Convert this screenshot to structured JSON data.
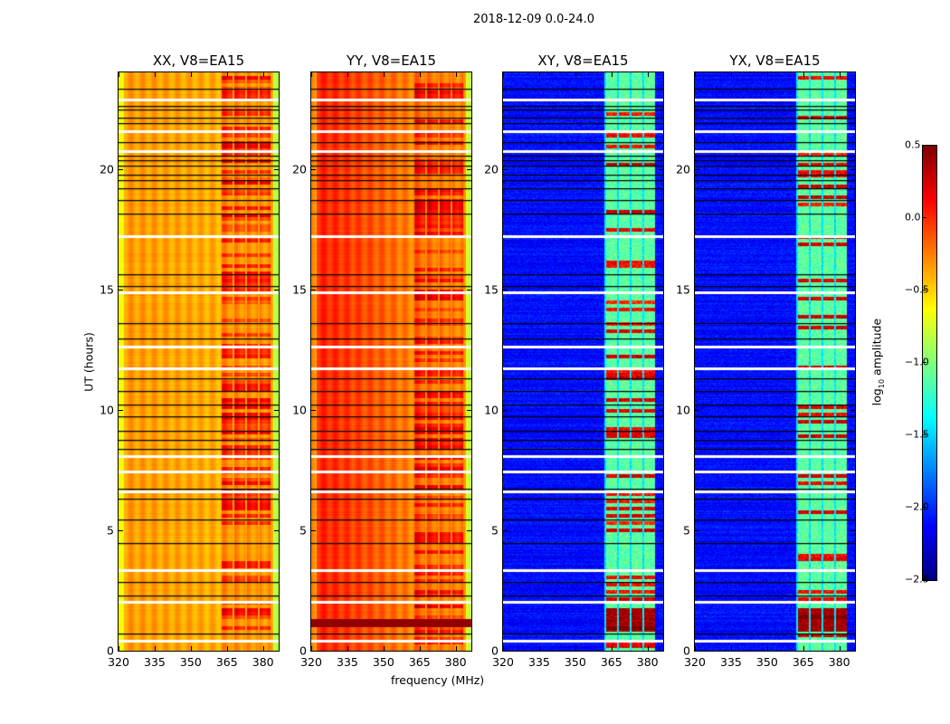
{
  "suptitle": "2018-12-09 0.0-24.0",
  "xlabel": "frequency (MHz)",
  "ylabel": "UT (hours)",
  "colorbar": {
    "label_main": "log",
    "label_sub": "10",
    "label_rest": " amplitude",
    "range": [
      -2.5,
      0.5
    ],
    "ticks": [
      "0.5",
      "0.0",
      "−0.5",
      "−1.0",
      "−1.5",
      "−2.0",
      "−2.5"
    ],
    "tick_values": [
      0.5,
      0.0,
      -0.5,
      -1.0,
      -1.5,
      -2.0,
      -2.5
    ],
    "colormap": "jet"
  },
  "chart_data": [
    {
      "type": "heatmap",
      "title": "XX, V8=EA15",
      "pol": "parallel",
      "xlim": [
        320,
        386.5
      ],
      "ylim": [
        0,
        24
      ],
      "base_level": -0.35,
      "rfi_level": 0.25
    },
    {
      "type": "heatmap",
      "title": "YY, V8=EA15",
      "pol": "parallel",
      "xlim": [
        320,
        386.5
      ],
      "ylim": [
        0,
        24
      ],
      "base_level": -0.15,
      "rfi_level": 0.4
    },
    {
      "type": "heatmap",
      "title": "XY, V8=EA15",
      "pol": "cross",
      "xlim": [
        320,
        386.5
      ],
      "ylim": [
        0,
        24
      ],
      "base_level": -2.3,
      "rfi_level": -1.0
    },
    {
      "type": "heatmap",
      "title": "YX, V8=EA15",
      "pol": "cross",
      "xlim": [
        320,
        386.5
      ],
      "ylim": [
        0,
        24
      ],
      "base_level": -2.3,
      "rfi_level": -1.0
    }
  ],
  "xticks": [
    "320",
    "335",
    "350",
    "365",
    "380"
  ],
  "xtick_values": [
    320,
    335,
    350,
    365,
    380
  ],
  "yticks": [
    "0",
    "5",
    "10",
    "15",
    "20"
  ],
  "ytick_values": [
    0,
    5,
    10,
    15,
    20
  ],
  "rfi_band_mhz": [
    362,
    383
  ],
  "flagged_gaps_hours": [
    22.87,
    21.56,
    20.73,
    17.2,
    14.87,
    12.62,
    11.72,
    8.08,
    7.44,
    6.61,
    3.34,
    2.03,
    0.41
  ],
  "scan_boundaries_hours": [
    23.32,
    22.61,
    22.46,
    22.12,
    21.9,
    21.11,
    20.55,
    20.36,
    20.13,
    19.76,
    19.53,
    19.19,
    18.7,
    18.14,
    15.63,
    15.14,
    13.6,
    12.96,
    11.31,
    10.78,
    10.22,
    9.73,
    9.13,
    8.75,
    8.38,
    6.72,
    6.31,
    5.45,
    4.47,
    2.85,
    2.29,
    0.71
  ]
}
